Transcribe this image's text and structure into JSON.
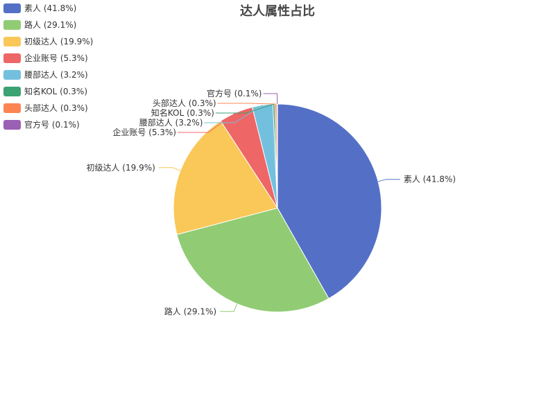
{
  "chart_data": {
    "type": "pie",
    "title": "达人属性占比",
    "legend_position": "top-left",
    "slices": [
      {
        "name": "素人",
        "value": 41.8,
        "label": "素人 (41.8%)",
        "color": "#5470c6"
      },
      {
        "name": "路人",
        "value": 29.1,
        "label": "路人 (29.1%)",
        "color": "#91cc75"
      },
      {
        "name": "初级达人",
        "value": 19.9,
        "label": "初级达人 (19.9%)",
        "color": "#fac858"
      },
      {
        "name": "企业账号",
        "value": 5.3,
        "label": "企业账号 (5.3%)",
        "color": "#ee6666"
      },
      {
        "name": "腰部达人",
        "value": 3.2,
        "label": "腰部达人 (3.2%)",
        "color": "#73c0de"
      },
      {
        "name": "知名KOL",
        "value": 0.3,
        "label": "知名KOL (0.3%)",
        "color": "#3ba272"
      },
      {
        "name": "头部达人",
        "value": 0.3,
        "label": "头部达人 (0.3%)",
        "color": "#fc8452"
      },
      {
        "name": "官方号",
        "value": 0.1,
        "label": "官方号 (0.1%)",
        "color": "#9a60b4"
      }
    ]
  }
}
